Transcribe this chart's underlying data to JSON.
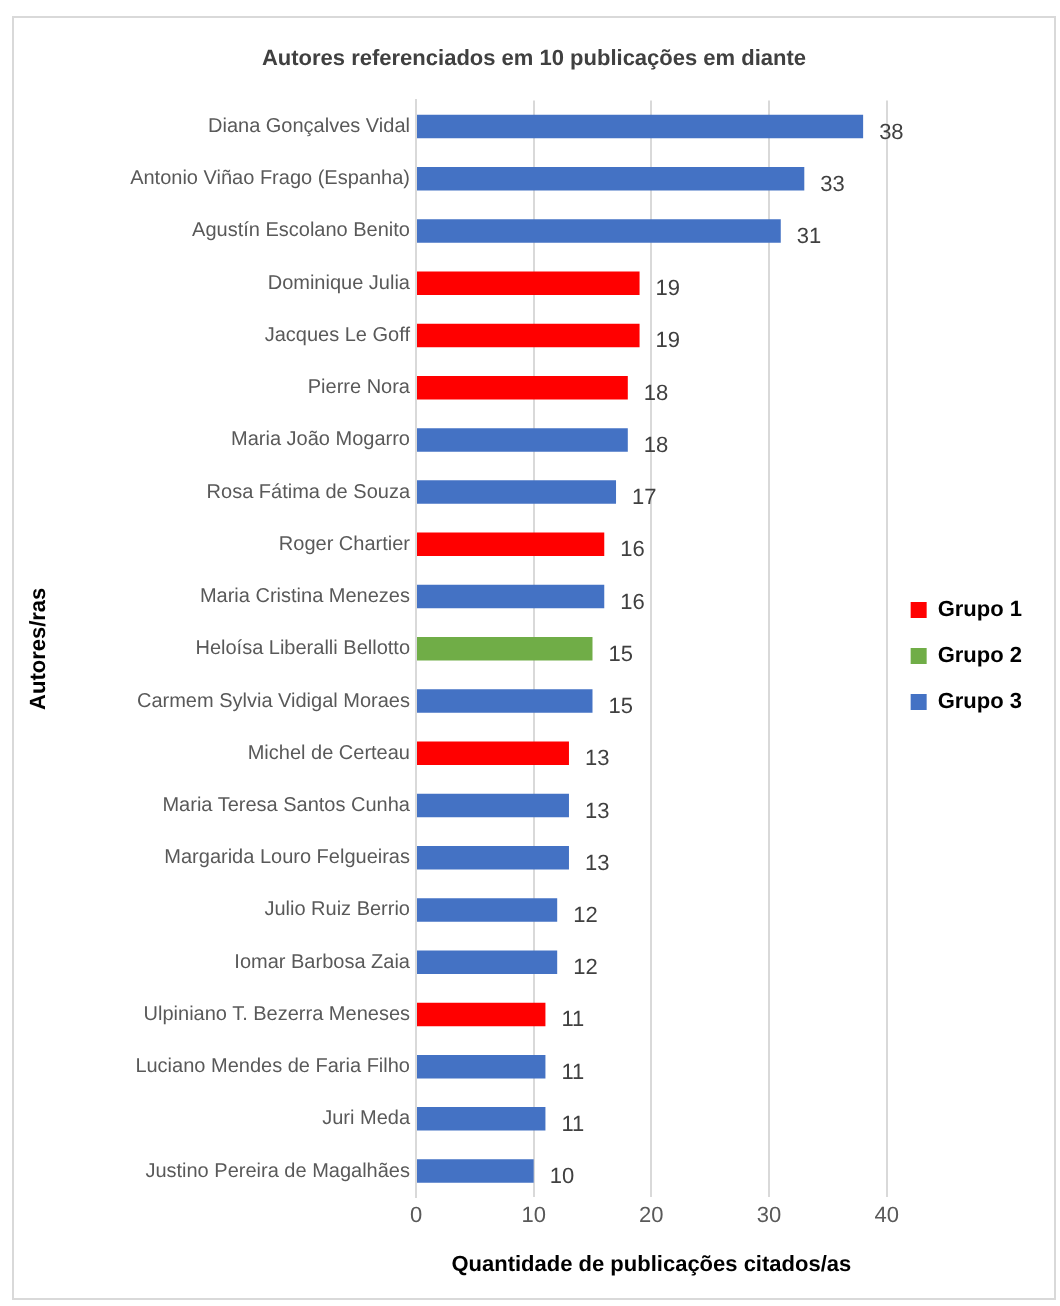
{
  "chart_data": {
    "type": "bar",
    "orientation": "horizontal",
    "title": "Autores referenciados em 10 publicações em diante",
    "xlabel": "Quantidade de publicações citados/as",
    "ylabel": "Autores/ras",
    "categories": [
      "Diana Gonçalves Vidal",
      "Antonio Viñao Frago (Espanha)",
      "Agustín Escolano Benito",
      "Dominique Julia",
      "Jacques Le Goff",
      "Pierre Nora",
      "Maria João Mogarro",
      "Rosa Fátima de Souza",
      "Roger Chartier",
      "Maria Cristina Menezes",
      "Heloísa Liberalli Bellotto",
      "Carmem Sylvia Vidigal Moraes",
      "Michel de Certeau",
      "Maria Teresa Santos Cunha",
      "Margarida Louro Felgueiras",
      "Julio Ruiz Berrio",
      "Iomar Barbosa Zaia",
      "Ulpiniano T. Bezerra Meneses",
      "Luciano Mendes de Faria Filho",
      "Juri Meda",
      "Justino Pereira de Magalhães"
    ],
    "series": [
      {
        "name": "Grupo 1",
        "color": "#ff0000",
        "values": [
          null,
          null,
          null,
          19,
          19,
          18,
          null,
          null,
          16,
          null,
          null,
          null,
          13,
          null,
          null,
          null,
          null,
          11,
          null,
          null,
          null
        ]
      },
      {
        "name": "Grupo 2",
        "color": "#70ad47",
        "values": [
          null,
          null,
          null,
          null,
          null,
          null,
          null,
          null,
          null,
          null,
          15,
          null,
          null,
          null,
          null,
          null,
          null,
          null,
          null,
          null,
          null
        ]
      },
      {
        "name": "Grupo 3",
        "color": "#4472c4",
        "values": [
          38,
          33,
          31,
          null,
          null,
          null,
          18,
          17,
          null,
          16,
          null,
          15,
          null,
          13,
          13,
          12,
          12,
          null,
          11,
          11,
          10
        ]
      }
    ],
    "xlim": [
      0,
      40
    ],
    "xticks": [
      0,
      10,
      20,
      30,
      40
    ],
    "grid": "x",
    "legend": "right",
    "data_labels": true
  }
}
